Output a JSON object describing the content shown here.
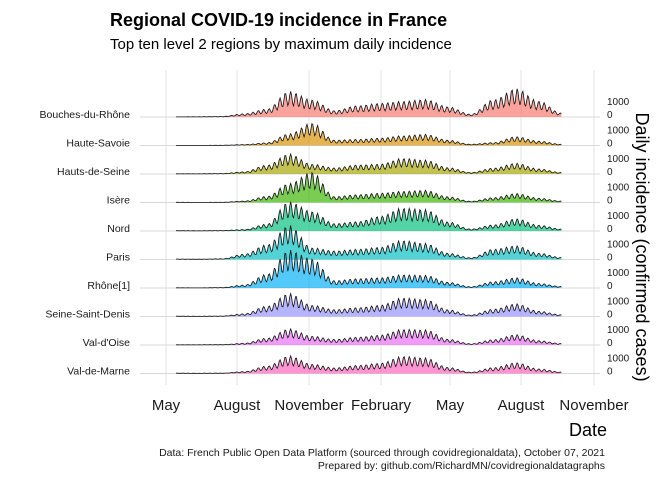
{
  "chart_data": {
    "type": "area",
    "title": "Regional COVID-19 incidence in France",
    "subtitle": "Top ten level 2 regions by maximum daily incidence",
    "xlabel": "Date",
    "ylabel": "Daily incidence (confirmed cases)",
    "x_ticks": [
      "May",
      "August",
      "November",
      "February",
      "May",
      "August",
      "November"
    ],
    "y_ticks": [
      "0",
      "1000"
    ],
    "caption": [
      "Data: French Public Open Data Platform (sourced through covidregionaldata), October 07, 2021",
      "Prepared by: github.com/RichardMN/covidregionaldatagraphs"
    ],
    "legend": "none",
    "grid": true,
    "x_month_index": [
      "2020-05",
      "2020-06",
      "2020-07",
      "2020-08",
      "2020-09",
      "2020-10",
      "2020-11",
      "2020-12",
      "2021-01",
      "2021-02",
      "2021-03",
      "2021-04",
      "2021-05",
      "2021-06",
      "2021-07",
      "2021-08",
      "2021-09",
      "2021-10"
    ],
    "series": [
      {
        "name": "Bouches-du-Rhône",
        "color": "#f8766d",
        "values": [
          5,
          10,
          20,
          130,
          320,
          1050,
          700,
          260,
          460,
          560,
          640,
          720,
          420,
          110,
          700,
          1160,
          650,
          160
        ]
      },
      {
        "name": "Haute-Savoie",
        "color": "#d89000",
        "values": [
          5,
          5,
          10,
          40,
          110,
          480,
          920,
          220,
          250,
          300,
          400,
          460,
          220,
          50,
          120,
          360,
          180,
          50
        ]
      },
      {
        "name": "Hauts-de-Seine",
        "color": "#a3a500",
        "values": [
          10,
          10,
          20,
          90,
          360,
          820,
          400,
          250,
          370,
          400,
          640,
          570,
          260,
          60,
          240,
          440,
          210,
          60
        ]
      },
      {
        "name": "Isère",
        "color": "#39b600",
        "values": [
          10,
          5,
          10,
          60,
          250,
          780,
          1250,
          240,
          320,
          380,
          460,
          500,
          240,
          50,
          200,
          370,
          180,
          60
        ]
      },
      {
        "name": "Nord",
        "color": "#00bf7d",
        "values": [
          15,
          10,
          20,
          60,
          280,
          1200,
          800,
          300,
          380,
          600,
          940,
          880,
          380,
          80,
          250,
          500,
          240,
          80
        ]
      },
      {
        "name": "Paris",
        "color": "#00bfc4",
        "values": [
          20,
          15,
          30,
          220,
          600,
          1400,
          480,
          350,
          420,
          500,
          780,
          660,
          260,
          70,
          420,
          560,
          260,
          80
        ]
      },
      {
        "name": "Rhône[1]",
        "color": "#00b0f6",
        "values": [
          10,
          5,
          20,
          120,
          560,
          1550,
          1200,
          300,
          380,
          420,
          540,
          520,
          240,
          50,
          260,
          420,
          190,
          60
        ]
      },
      {
        "name": "Seine-Saint-Denis",
        "color": "#9590ff",
        "values": [
          15,
          10,
          20,
          110,
          420,
          940,
          460,
          280,
          360,
          460,
          760,
          700,
          280,
          60,
          300,
          520,
          220,
          70
        ]
      },
      {
        "name": "Val-d'Oise",
        "color": "#e76bf3",
        "values": [
          10,
          10,
          15,
          70,
          280,
          660,
          360,
          230,
          320,
          400,
          640,
          620,
          240,
          50,
          220,
          420,
          180,
          60
        ]
      },
      {
        "name": "Val-de-Marne",
        "color": "#ff62bc",
        "values": [
          15,
          10,
          15,
          80,
          300,
          720,
          380,
          230,
          330,
          420,
          700,
          640,
          250,
          55,
          240,
          440,
          190,
          60
        ]
      }
    ]
  }
}
